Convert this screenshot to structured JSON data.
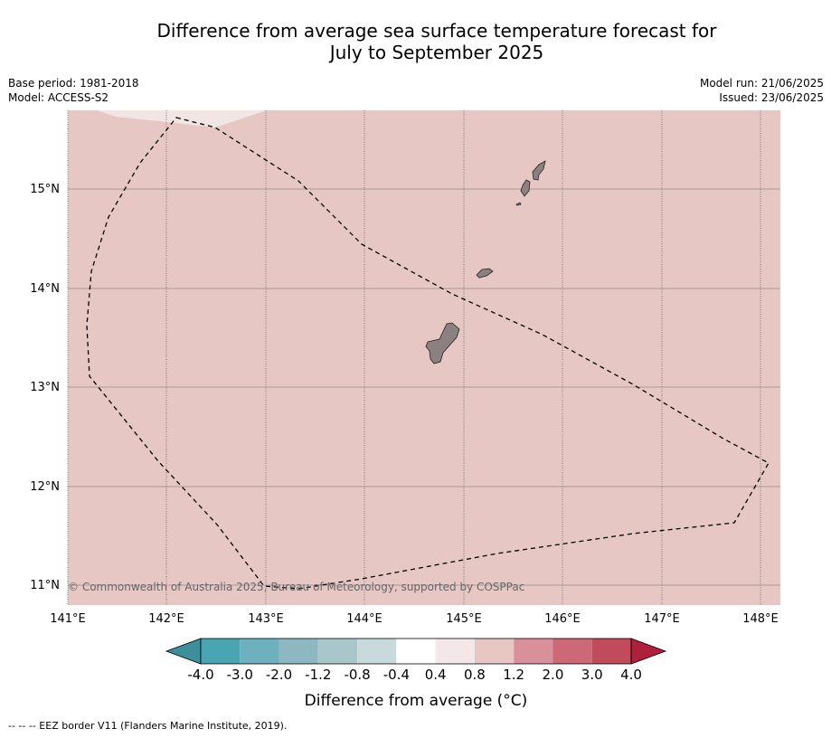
{
  "title_line1": "Difference from average sea surface temperature forecast for",
  "title_line2": "July to September 2025",
  "meta_left": {
    "base_period": "Base period: 1981-2018",
    "model": "Model: ACCESS-S2"
  },
  "meta_right": {
    "model_run": "Model run: 21/06/2025",
    "issued": "Issued: 23/06/2025"
  },
  "map": {
    "lon_labels": [
      "141°E",
      "142°E",
      "143°E",
      "144°E",
      "145°E",
      "146°E",
      "147°E",
      "148°E"
    ],
    "lat_labels": [
      "15°N",
      "14°N",
      "13°N",
      "12°N",
      "11°N"
    ],
    "copyright": "© Commonwealth of Australia 2025, Bureau of Meteorology, supported by COSPPac",
    "fill_color": "#e7c7c3",
    "light_fill_color": "#f2e6e4",
    "land_color": "#8b8180"
  },
  "colorbar": {
    "tick_labels": [
      "-4.0",
      "-3.0",
      "-2.0",
      "-1.2",
      "-0.8",
      "-0.4",
      "0.4",
      "0.8",
      "1.2",
      "2.0",
      "3.0",
      "4.0"
    ],
    "colors": [
      "#3d8f9c",
      "#4aa5b3",
      "#6eb0bd",
      "#8db8c2",
      "#a9c7ca",
      "#c9dadd",
      "#ffffff",
      "#f3e8e7",
      "#e8c6c3",
      "#d8909a",
      "#cd6976",
      "#c04b5a",
      "#b0203d"
    ],
    "label": "Difference from average (°C)"
  },
  "footnote": "--  --  -- EEZ border V11 (Flanders Marine Institute, 2019)."
}
